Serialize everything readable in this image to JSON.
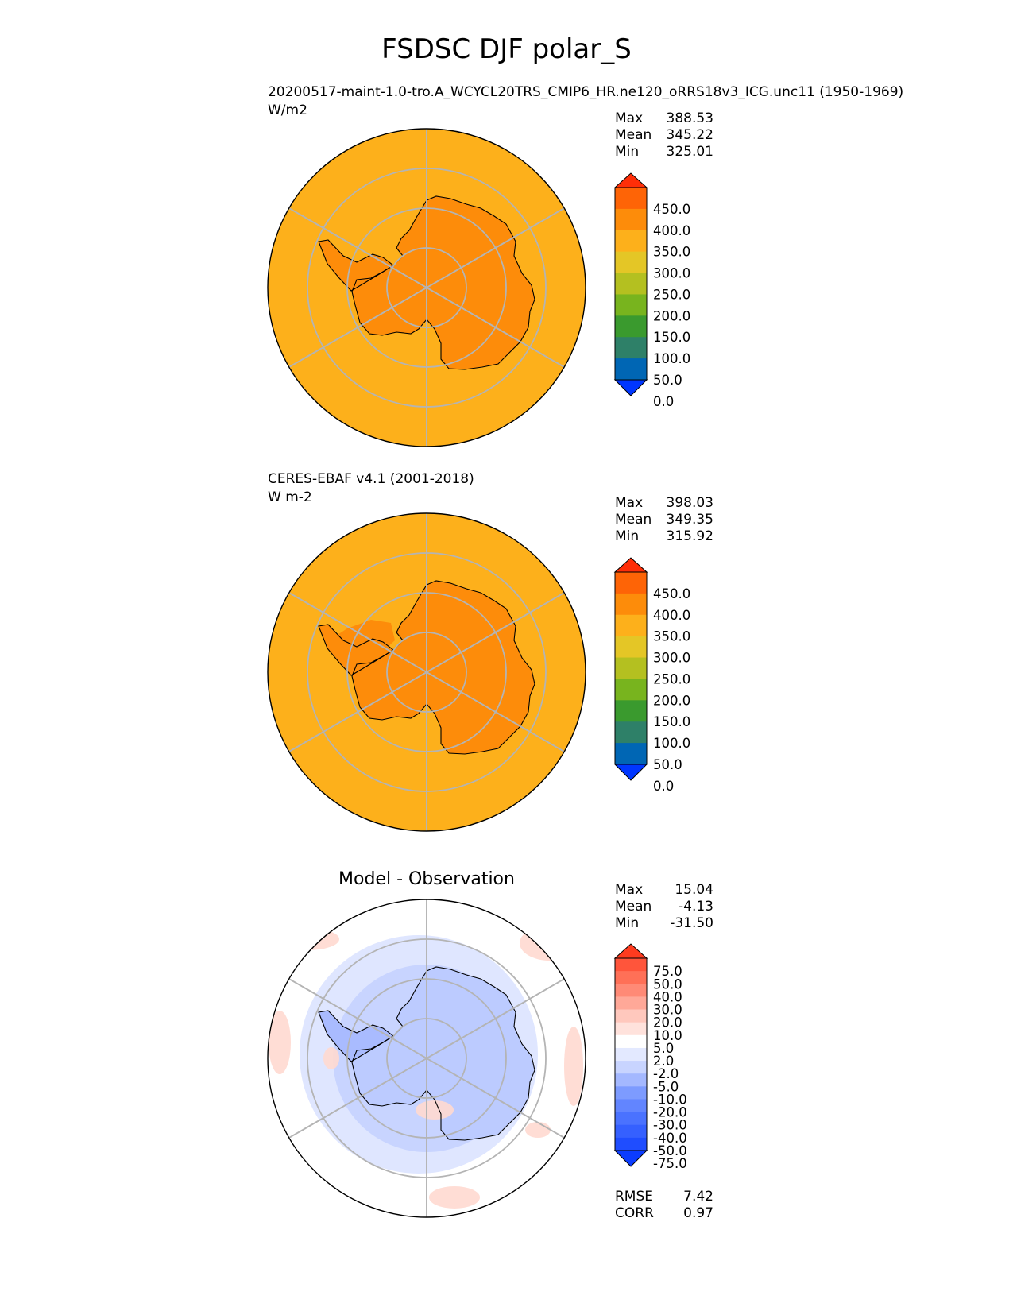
{
  "title": "FSDSC DJF polar_S",
  "panels": [
    {
      "title": "20200517-maint-1.0-tro.A_WCYCL20TRS_CMIP6_HR.ne120_oRRS18v3_ICG.unc11 (1950-1969)",
      "units": "W/m2",
      "stats": [
        {
          "label": "Max",
          "value": "388.53"
        },
        {
          "label": "Mean",
          "value": "345.22"
        },
        {
          "label": "Min",
          "value": "325.01"
        }
      ]
    },
    {
      "title": "CERES-EBAF v4.1 (2001-2018)",
      "units": "W m-2",
      "stats": [
        {
          "label": "Max",
          "value": "398.03"
        },
        {
          "label": "Mean",
          "value": "349.35"
        },
        {
          "label": "Min",
          "value": "315.92"
        }
      ]
    },
    {
      "title": "Model - Observation",
      "units": "",
      "stats": [
        {
          "label": "Max",
          "value": "15.04"
        },
        {
          "label": "Mean",
          "value": "-4.13"
        },
        {
          "label": "Min",
          "value": "-31.50"
        }
      ],
      "metrics": [
        {
          "label": "RMSE",
          "value": "7.42"
        },
        {
          "label": "CORR",
          "value": "0.97"
        }
      ]
    }
  ],
  "chart_data": [
    {
      "type": "heatmap",
      "projection": "south polar stereographic",
      "field": "FSDSC",
      "season": "DJF",
      "units": "W/m2",
      "colorbar": {
        "levels": [
          0,
          50,
          100,
          150,
          200,
          250,
          300,
          350,
          400,
          450
        ],
        "tick_labels": [
          "450.0",
          "400.0",
          "350.0",
          "300.0",
          "250.0",
          "200.0",
          "150.0",
          "100.0",
          "50.0",
          "0.0"
        ],
        "colors": [
          "#0036ff",
          "#0066b4",
          "#2e8068",
          "#3a9a2e",
          "#78b41e",
          "#b4c020",
          "#e4c626",
          "#fdb01b",
          "#fd8c0a",
          "#fe6406",
          "#ff2e08"
        ],
        "extend": "both"
      },
      "regions": [
        {
          "name": "ocean",
          "value": 325
        },
        {
          "name": "antarctic continent",
          "value": 365
        }
      ],
      "stats": {
        "max": 388.53,
        "mean": 345.22,
        "min": 325.01
      }
    },
    {
      "type": "heatmap",
      "projection": "south polar stereographic",
      "field": "FSDSC",
      "season": "DJF",
      "units": "W m-2",
      "colorbar": {
        "levels": [
          0,
          50,
          100,
          150,
          200,
          250,
          300,
          350,
          400,
          450
        ],
        "tick_labels": [
          "450.0",
          "400.0",
          "350.0",
          "300.0",
          "250.0",
          "200.0",
          "150.0",
          "100.0",
          "50.0",
          "0.0"
        ],
        "colors": [
          "#0036ff",
          "#0066b4",
          "#2e8068",
          "#3a9a2e",
          "#78b41e",
          "#b4c020",
          "#e4c626",
          "#fdb01b",
          "#fd8c0a",
          "#fe6406",
          "#ff2e08"
        ],
        "extend": "both"
      },
      "regions": [
        {
          "name": "ocean",
          "value": 325
        },
        {
          "name": "antarctic continent and sea ice",
          "value": 370
        }
      ],
      "stats": {
        "max": 398.03,
        "mean": 349.35,
        "min": 315.92
      }
    },
    {
      "type": "heatmap",
      "projection": "south polar stereographic",
      "units": "W/m2",
      "colorbar": {
        "levels": [
          -75,
          -50,
          -40,
          -30,
          -20,
          -10,
          -5,
          -2,
          2,
          5,
          10,
          20,
          30,
          40,
          50,
          75
        ],
        "tick_labels": [
          "75.0",
          "50.0",
          "40.0",
          "30.0",
          "20.0",
          "10.0",
          "5.0",
          "2.0",
          "-2.0",
          "-5.0",
          "-10.0",
          "-20.0",
          "-30.0",
          "-40.0",
          "-50.0",
          "-75.0"
        ],
        "colors": [
          "#0b3cff",
          "#1f4dff",
          "#3560ff",
          "#4a72ff",
          "#6285ff",
          "#7d9bff",
          "#a4b8ff",
          "#c8d4ff",
          "#e3e9ff",
          "#ffffff",
          "#ffe2dc",
          "#ffc8bd",
          "#ffa898",
          "#ff8a76",
          "#ff7057",
          "#ff553b",
          "#ff3b1f"
        ],
        "extend": "both"
      },
      "stats": {
        "max": 15.04,
        "mean": -4.13,
        "min": -31.5
      },
      "rmse": 7.42,
      "corr": 0.97
    }
  ]
}
